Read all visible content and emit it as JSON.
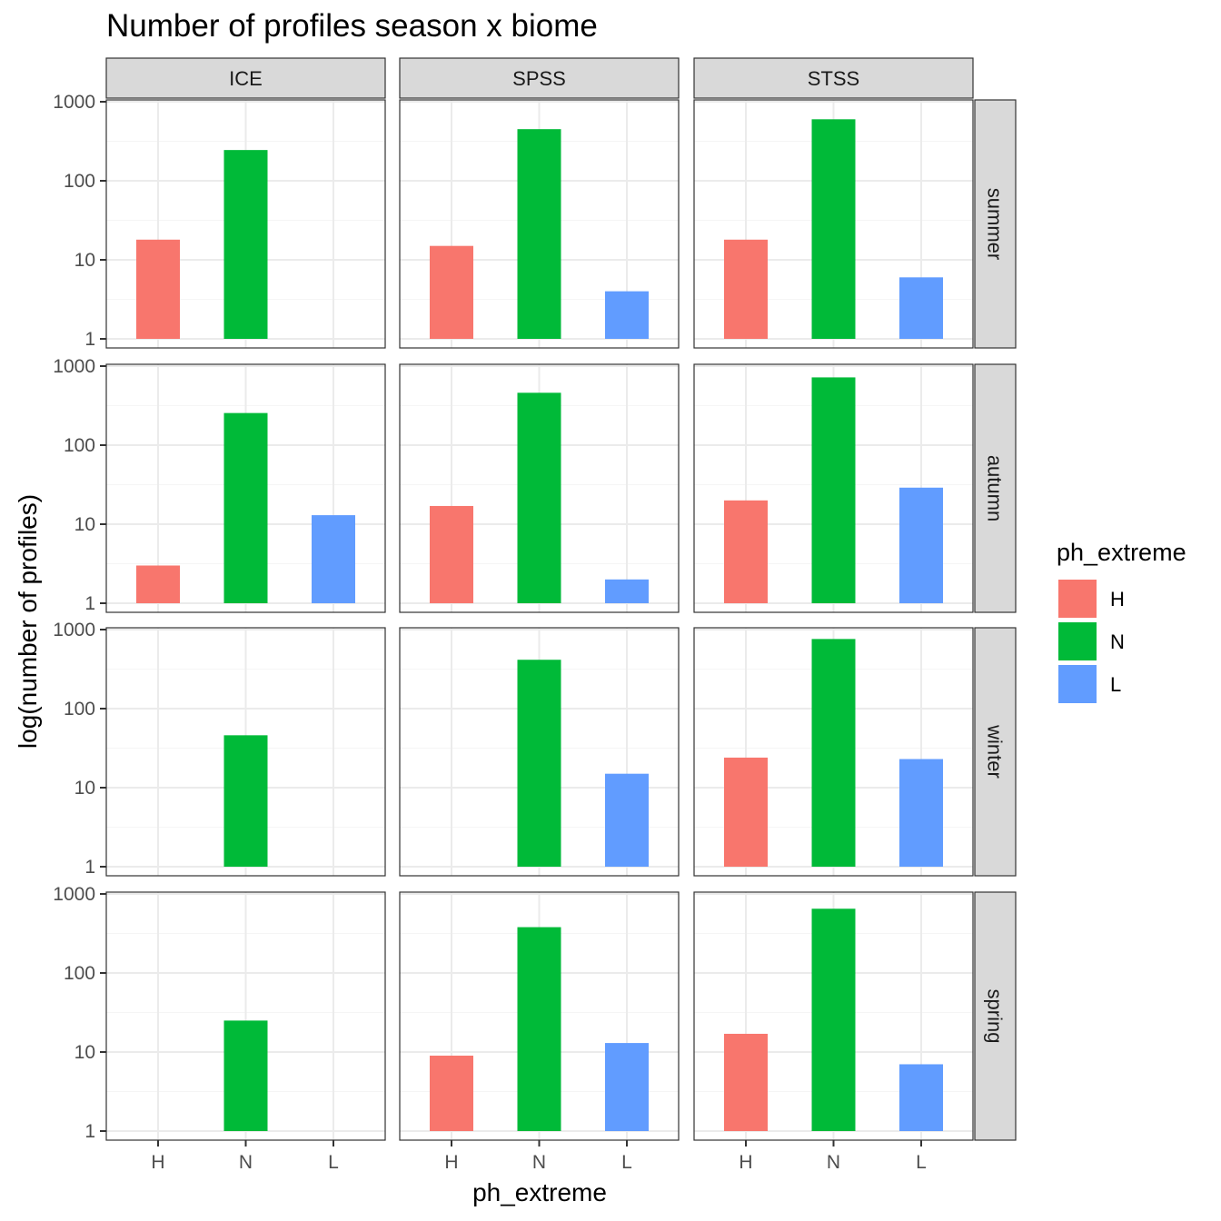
{
  "chart_data": {
    "type": "bar",
    "title": "Number of profiles season x biome",
    "xlabel": "ph_extreme",
    "ylabel": "log(number of profiles)",
    "yscale": "log10",
    "ylim": [
      1,
      1000
    ],
    "yticks": [
      1,
      10,
      100,
      1000
    ],
    "ytick_labels": [
      "1",
      "10",
      "100",
      "1000"
    ],
    "categories": [
      "H",
      "N",
      "L"
    ],
    "columns": [
      "ICE",
      "SPSS",
      "STSS"
    ],
    "rows": [
      "summer",
      "autumn",
      "winter",
      "spring"
    ],
    "legend": {
      "title": "ph_extreme",
      "position": "right",
      "entries": [
        {
          "label": "H",
          "color": "#F8766D"
        },
        {
          "label": "N",
          "color": "#00BA38"
        },
        {
          "label": "L",
          "color": "#619CFF"
        }
      ]
    },
    "panels": [
      {
        "row": "summer",
        "column": "ICE",
        "values": [
          18,
          245,
          null
        ]
      },
      {
        "row": "summer",
        "column": "SPSS",
        "values": [
          15,
          450,
          4
        ]
      },
      {
        "row": "summer",
        "column": "STSS",
        "values": [
          18,
          600,
          6
        ]
      },
      {
        "row": "autumn",
        "column": "ICE",
        "values": [
          3,
          255,
          13
        ]
      },
      {
        "row": "autumn",
        "column": "SPSS",
        "values": [
          17,
          460,
          2
        ]
      },
      {
        "row": "autumn",
        "column": "STSS",
        "values": [
          20,
          720,
          29
        ]
      },
      {
        "row": "winter",
        "column": "ICE",
        "values": [
          null,
          46,
          null
        ]
      },
      {
        "row": "winter",
        "column": "SPSS",
        "values": [
          null,
          415,
          15
        ]
      },
      {
        "row": "winter",
        "column": "STSS",
        "values": [
          24,
          760,
          23
        ]
      },
      {
        "row": "spring",
        "column": "ICE",
        "values": [
          null,
          25,
          null
        ]
      },
      {
        "row": "spring",
        "column": "SPSS",
        "values": [
          9,
          380,
          13
        ]
      },
      {
        "row": "spring",
        "column": "STSS",
        "values": [
          17,
          650,
          7
        ]
      }
    ]
  },
  "colors": {
    "H": "#F8766D",
    "N": "#00BA38",
    "L": "#619CFF",
    "strip_fill": "#D9D9D9",
    "grid_major": "#EBEBEB",
    "grid_minor": "#F5F5F5",
    "panel_border": "#333333"
  }
}
